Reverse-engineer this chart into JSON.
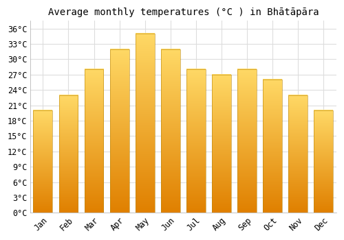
{
  "title": "Average monthly temperatures (°C ) in Bhātāpāra",
  "months": [
    "Jan",
    "Feb",
    "Mar",
    "Apr",
    "May",
    "Jun",
    "Jul",
    "Aug",
    "Sep",
    "Oct",
    "Nov",
    "Dec"
  ],
  "values": [
    20,
    23,
    28,
    32,
    35,
    32,
    28,
    27,
    28,
    26,
    23,
    20
  ],
  "bar_color_top": "#FFD966",
  "bar_color_bottom": "#E08000",
  "bar_color_edge": "#B8860B",
  "background_color": "#ffffff",
  "plot_bg_color": "#ffffff",
  "grid_color": "#dddddd",
  "yticks": [
    0,
    3,
    6,
    9,
    12,
    15,
    18,
    21,
    24,
    27,
    30,
    33,
    36
  ],
  "ylim": [
    0,
    37.5
  ],
  "title_fontsize": 10,
  "tick_fontsize": 8.5,
  "bar_width": 0.75
}
